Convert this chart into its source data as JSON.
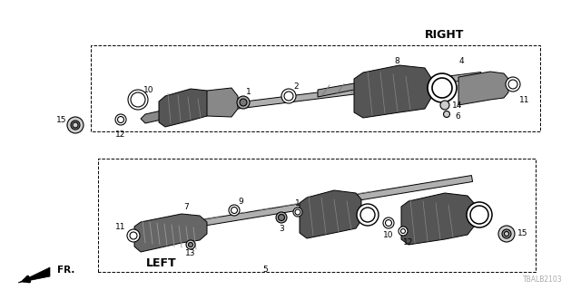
{
  "bg_color": "#ffffff",
  "line_color": "#000000",
  "title_right": "RIGHT",
  "title_left": "LEFT",
  "watermark": "TBALB2103",
  "arrow_label": "FR.",
  "figsize": [
    6.4,
    3.2
  ],
  "dpi": 100
}
